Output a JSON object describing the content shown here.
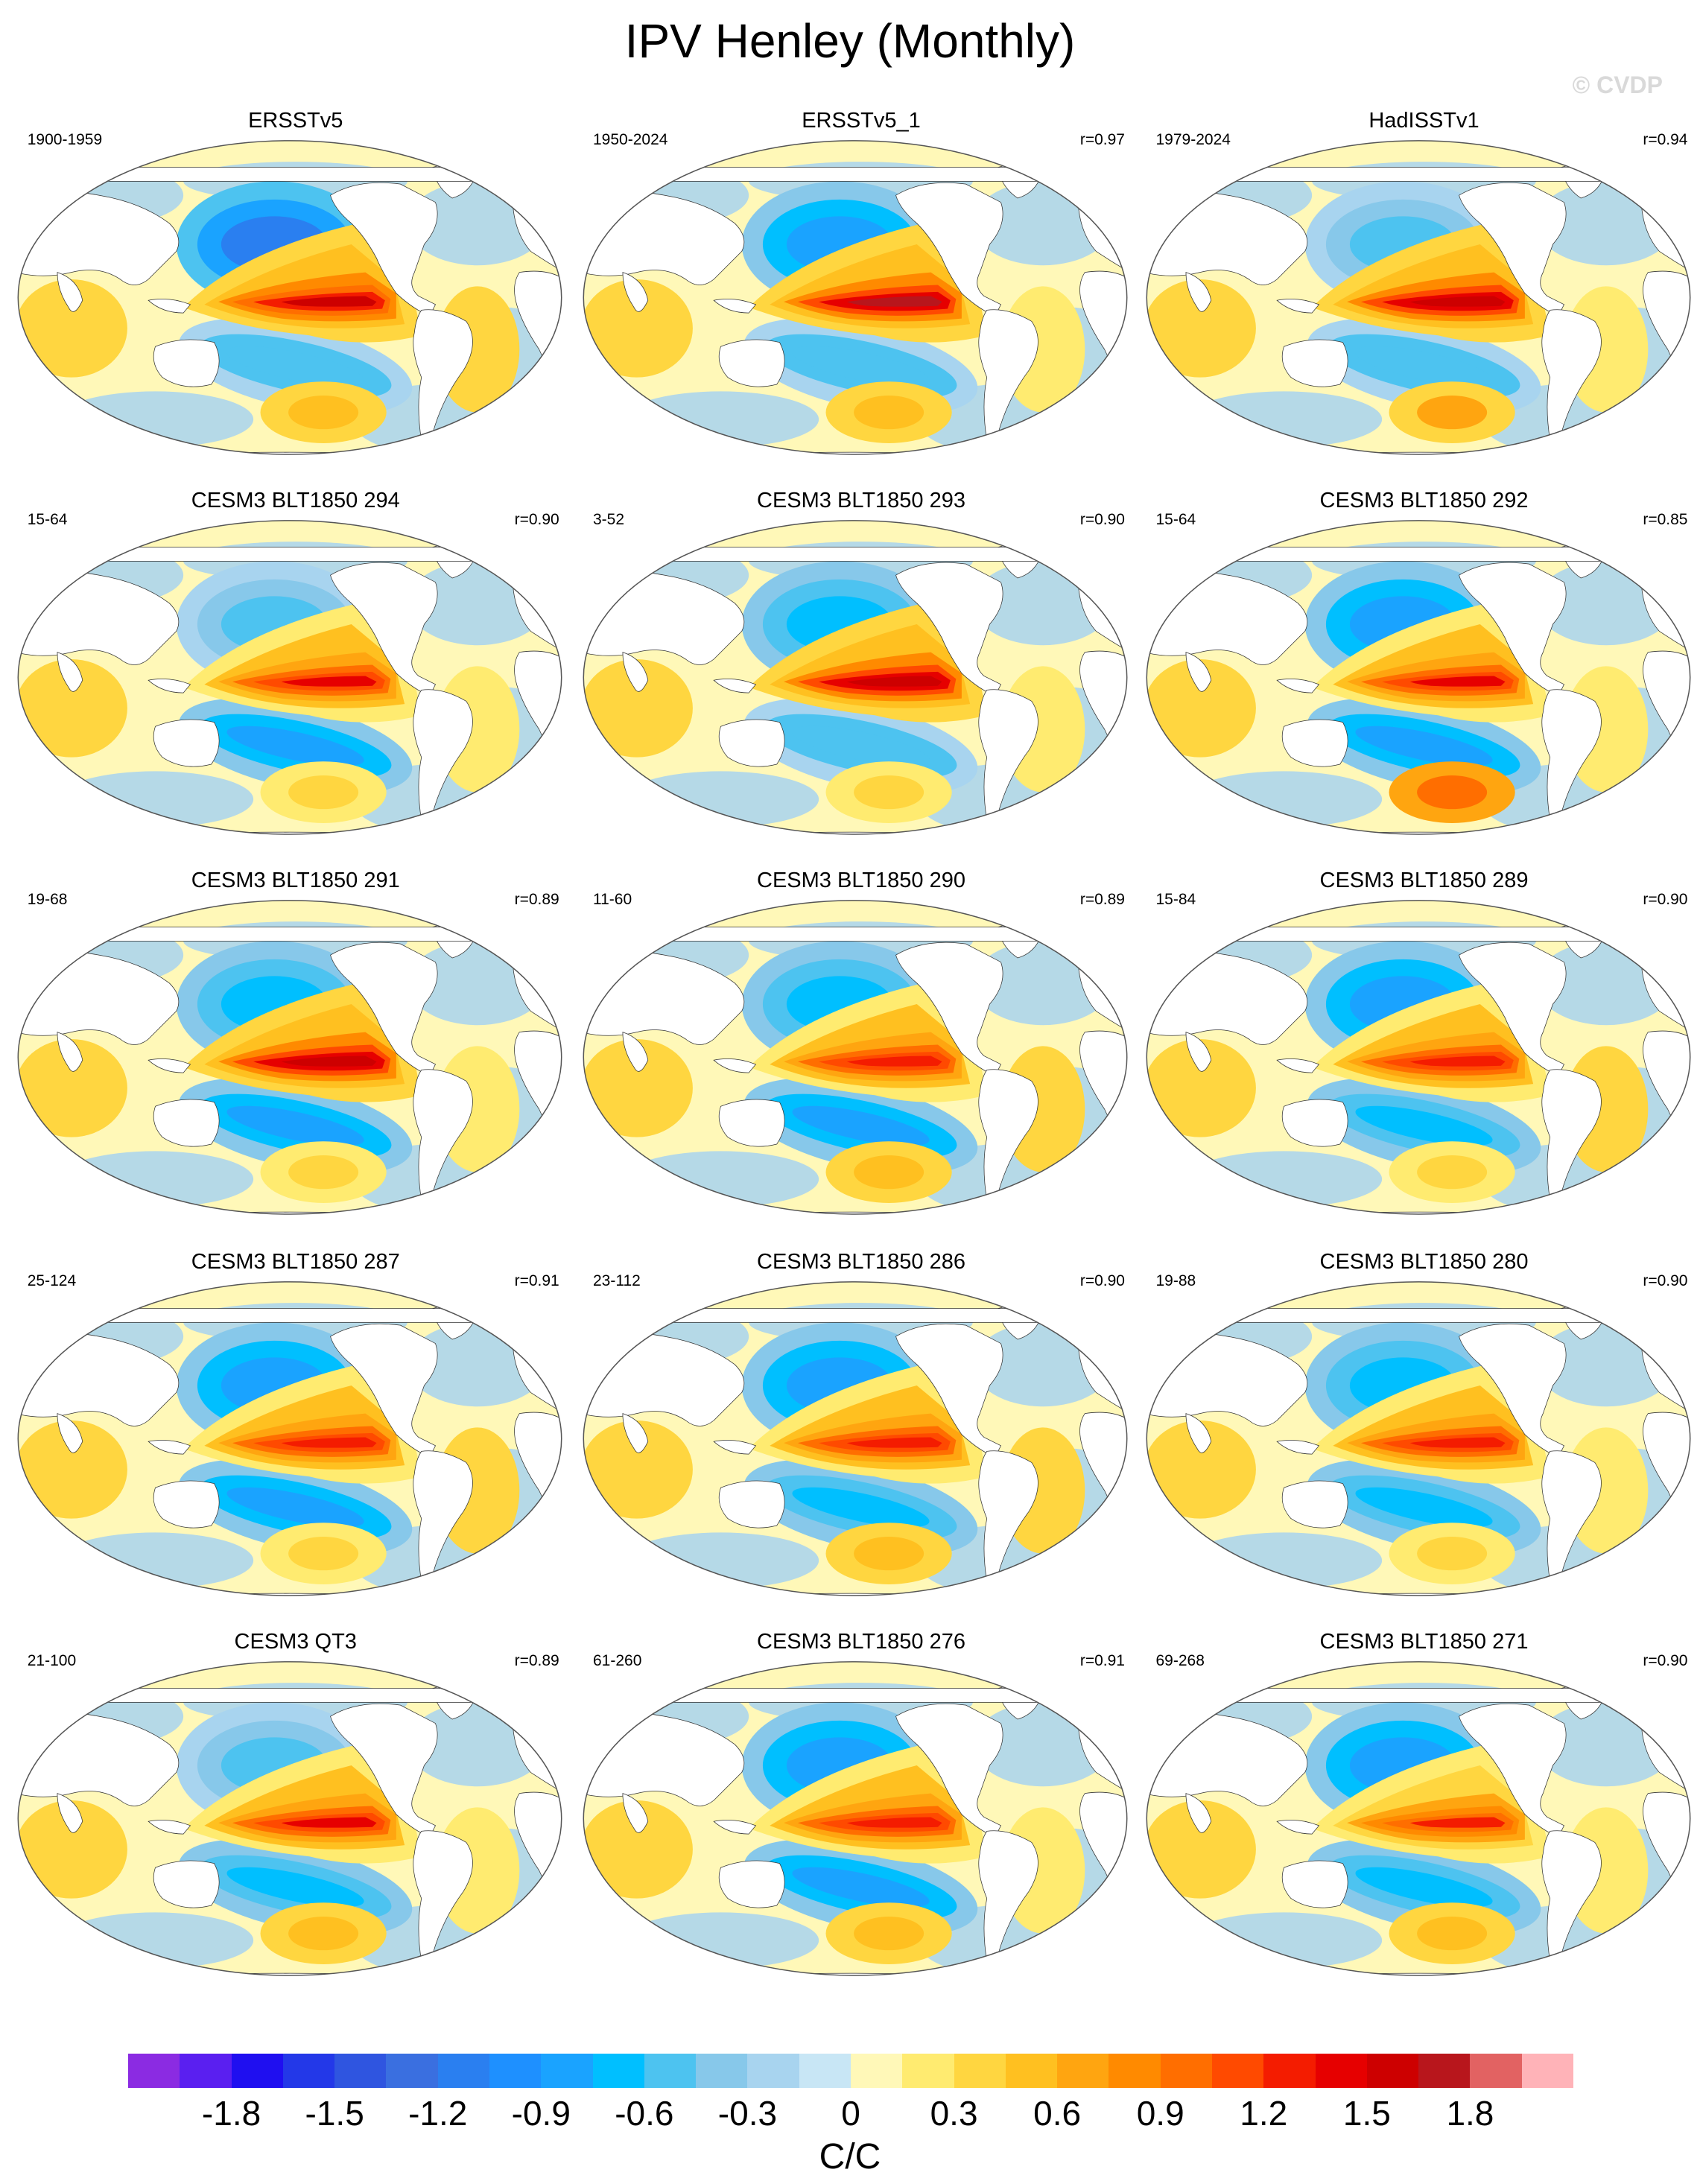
{
  "title": "IPV Henley (Monthly)",
  "watermark": "© CVDP",
  "panels": [
    {
      "title": "ERSSTv5",
      "years": "1900-1959",
      "r": "",
      "blobs": [
        -1.1,
        1.5,
        -0.6,
        0.5,
        0.4
      ]
    },
    {
      "title": "ERSSTv5_1",
      "years": "1950-2024",
      "r": "r=0.97",
      "blobs": [
        -0.8,
        1.7,
        -0.6,
        0.5,
        0.3
      ]
    },
    {
      "title": "HadISSTv1",
      "years": "1979-2024",
      "r": "r=0.94",
      "blobs": [
        -0.5,
        1.6,
        -0.6,
        0.6,
        0.3
      ]
    },
    {
      "title": "CESM3 BLT1850 294",
      "years": "15-64",
      "r": "r=0.90",
      "blobs": [
        -0.6,
        1.4,
        -0.8,
        0.4,
        0.3
      ]
    },
    {
      "title": "CESM3 BLT1850 293",
      "years": "3-52",
      "r": "r=0.90",
      "blobs": [
        -0.7,
        1.6,
        -0.6,
        0.4,
        0.3
      ]
    },
    {
      "title": "CESM3 BLT1850 292",
      "years": "15-64",
      "r": "r=0.85",
      "blobs": [
        -0.9,
        1.4,
        -0.8,
        1.0,
        0.3
      ]
    },
    {
      "title": "CESM3 BLT1850 291",
      "years": "19-68",
      "r": "r=0.89",
      "blobs": [
        -0.7,
        1.6,
        -0.8,
        0.4,
        0.3
      ]
    },
    {
      "title": "CESM3 BLT1850 290",
      "years": "11-60",
      "r": "r=0.89",
      "blobs": [
        -0.7,
        1.3,
        -0.8,
        0.5,
        0.4
      ]
    },
    {
      "title": "CESM3 BLT1850 289",
      "years": "15-84",
      "r": "r=0.90",
      "blobs": [
        -0.8,
        1.3,
        -0.7,
        0.4,
        0.4
      ]
    },
    {
      "title": "CESM3 BLT1850 287",
      "years": "25-124",
      "r": "r=0.91",
      "blobs": [
        -0.8,
        1.3,
        -0.8,
        0.4,
        0.4
      ]
    },
    {
      "title": "CESM3 BLT1850 286",
      "years": "23-112",
      "r": "r=0.90",
      "blobs": [
        -0.9,
        1.3,
        -0.7,
        0.5,
        0.4
      ]
    },
    {
      "title": "CESM3 BLT1850 280",
      "years": "19-88",
      "r": "r=0.90",
      "blobs": [
        -0.7,
        1.3,
        -0.7,
        0.4,
        0.3
      ]
    },
    {
      "title": "CESM3 QT3",
      "years": "21-100",
      "r": "r=0.89",
      "blobs": [
        -0.6,
        1.4,
        -0.7,
        0.5,
        0.3
      ]
    },
    {
      "title": "CESM3 BLT1850 276",
      "years": "61-260",
      "r": "r=0.91",
      "blobs": [
        -0.9,
        1.3,
        -0.8,
        0.5,
        0.3
      ]
    },
    {
      "title": "CESM3 BLT1850 271",
      "years": "69-268",
      "r": "r=0.90",
      "blobs": [
        -0.8,
        1.2,
        -0.7,
        0.5,
        0.3
      ]
    }
  ],
  "colorbar": {
    "levels": [
      -1.95,
      -1.8,
      -1.65,
      -1.5,
      -1.35,
      -1.2,
      -1.05,
      -0.9,
      -0.75,
      -0.6,
      -0.45,
      -0.3,
      -0.15,
      0,
      0.15,
      0.3,
      0.45,
      0.6,
      0.75,
      0.9,
      1.05,
      1.2,
      1.35,
      1.5,
      1.65,
      1.8,
      1.95
    ],
    "colors": [
      "#8b2be2",
      "#5a1ff0",
      "#1f0ff0",
      "#2338e8",
      "#2f55e0",
      "#3a6fe0",
      "#2a7ff0",
      "#1e90ff",
      "#1aa3ff",
      "#00bfff",
      "#4dc3f0",
      "#87c8ea",
      "#a8d4ef",
      "#c8e6f5",
      "#fff8b8",
      "#ffeb70",
      "#ffd640",
      "#ffc020",
      "#ffa510",
      "#ff8a00",
      "#ff6e00",
      "#ff4a00",
      "#f41c00",
      "#e60000",
      "#cd0000",
      "#b8161c",
      "#e26262",
      "#ffb3b8"
    ],
    "tick_labels": [
      "-1.8",
      "-1.5",
      "-1.2",
      "-0.9",
      "-0.6",
      "-0.3",
      "0",
      "0.3",
      "0.6",
      "0.9",
      "1.2",
      "1.5",
      "1.8"
    ],
    "units": "C/C"
  }
}
